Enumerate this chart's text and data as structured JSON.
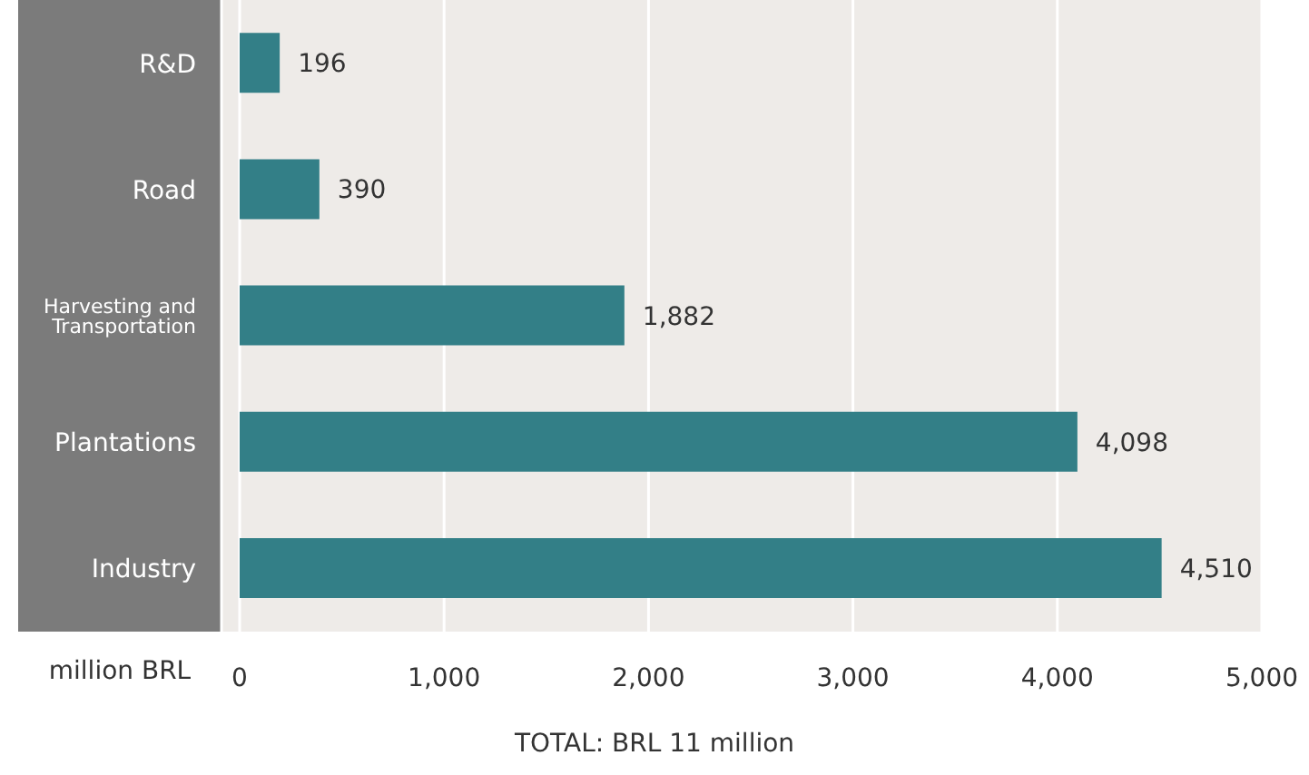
{
  "chart_data": {
    "type": "bar",
    "orientation": "horizontal",
    "xlabel": "million BRL",
    "categories": [
      "R&D",
      "Road",
      "Harvesting and Transportation",
      "Plantations",
      "Industry"
    ],
    "values": [
      196,
      390,
      1882,
      4098,
      4510
    ],
    "color": "#337f87",
    "value_labels": [
      "196",
      "390",
      "1,882",
      "4,098",
      "4,510"
    ],
    "xlim": [
      0,
      5000
    ],
    "xticks": [
      {
        "value": 0,
        "label": "0"
      },
      {
        "value": 1000,
        "label": "1,000"
      },
      {
        "value": 2000,
        "label": "2,000"
      },
      {
        "value": 3000,
        "label": "3,000"
      },
      {
        "value": 4000,
        "label": "4,000"
      },
      {
        "value": 5000,
        "label": "5,000"
      }
    ],
    "grid": "x",
    "annotations": [
      "TOTAL: BRL 11 million"
    ]
  }
}
